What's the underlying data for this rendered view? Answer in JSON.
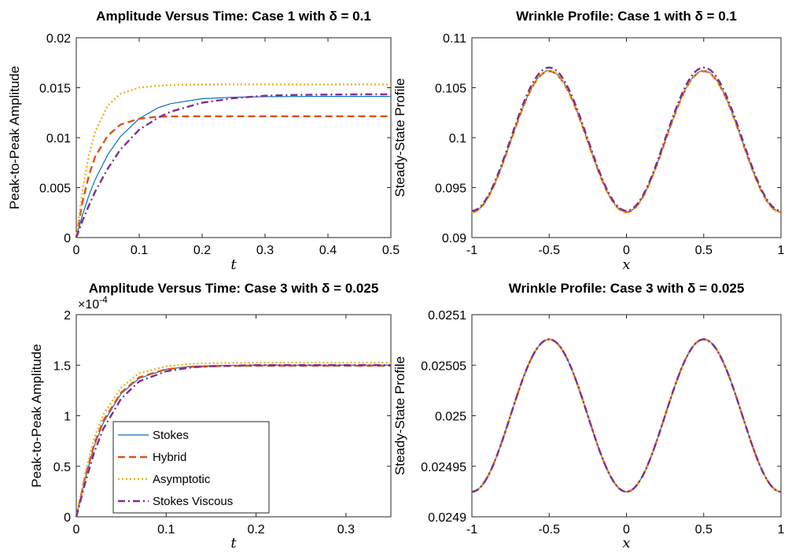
{
  "chart_data": [
    {
      "type": "line",
      "title": "Amplitude Versus Time: Case 1 with δ = 0.1",
      "xlabel": "t",
      "ylabel": "Peak-to-Peak Amplitude",
      "xlim": [
        0,
        0.5
      ],
      "ylim": [
        0,
        0.02
      ],
      "xticks": [
        "0",
        "0.1",
        "0.2",
        "0.3",
        "0.4",
        "0.5"
      ],
      "yticks": [
        "0",
        "0.005",
        "0.01",
        "0.015",
        "0.02"
      ],
      "exponent_label": "",
      "series": [
        {
          "name": "Stokes",
          "color": "#0072BD",
          "style": "solid",
          "x": [
            0,
            0.01,
            0.02,
            0.03,
            0.05,
            0.07,
            0.1,
            0.13,
            0.15,
            0.2,
            0.25,
            0.3,
            0.35,
            0.4,
            0.45,
            0.5
          ],
          "y": [
            0,
            0.0023,
            0.0042,
            0.0058,
            0.0083,
            0.0101,
            0.0119,
            0.013,
            0.0134,
            0.0139,
            0.01405,
            0.0141,
            0.01412,
            0.01413,
            0.01413,
            0.01413
          ]
        },
        {
          "name": "Hybrid",
          "color": "#D95319",
          "style": "dash",
          "x": [
            0,
            0.01,
            0.02,
            0.03,
            0.05,
            0.07,
            0.1,
            0.13,
            0.15,
            0.2,
            0.25,
            0.3,
            0.4,
            0.5
          ],
          "y": [
            0,
            0.0036,
            0.0062,
            0.0081,
            0.0102,
            0.0113,
            0.0119,
            0.0121,
            0.01213,
            0.01214,
            0.01214,
            0.01214,
            0.01214,
            0.01214
          ]
        },
        {
          "name": "Asymptotic",
          "color": "#EDB120",
          "style": "dot",
          "x": [
            0,
            0.01,
            0.02,
            0.03,
            0.05,
            0.07,
            0.1,
            0.13,
            0.15,
            0.2,
            0.25,
            0.3,
            0.4,
            0.5
          ],
          "y": [
            0,
            0.0048,
            0.0082,
            0.0106,
            0.0132,
            0.0144,
            0.015,
            0.0152,
            0.01527,
            0.01532,
            0.01533,
            0.01533,
            0.01533,
            0.01533
          ]
        },
        {
          "name": "Stokes Viscous",
          "color": "#7E2F8E",
          "style": "dashdot",
          "x": [
            0,
            0.01,
            0.02,
            0.03,
            0.05,
            0.07,
            0.1,
            0.13,
            0.15,
            0.2,
            0.25,
            0.3,
            0.35,
            0.4,
            0.45,
            0.5
          ],
          "y": [
            0,
            0.0017,
            0.0032,
            0.0046,
            0.0069,
            0.0088,
            0.0108,
            0.012,
            0.0126,
            0.0135,
            0.01395,
            0.0142,
            0.01428,
            0.01431,
            0.01433,
            0.01434
          ]
        }
      ]
    },
    {
      "type": "line",
      "title": "Wrinkle Profile: Case 1 with δ = 0.1",
      "xlabel": "x",
      "ylabel": "Steady-State Profile",
      "xlim": [
        -1,
        1
      ],
      "ylim": [
        0.09,
        0.11
      ],
      "xticks": [
        "-1",
        "-0.5",
        "0",
        "0.5",
        "1"
      ],
      "yticks": [
        "0.09",
        "0.095",
        "0.1",
        "0.105",
        "0.11"
      ],
      "exponent_label": "",
      "profile": {
        "formula": "mean - amp*cos(2*pi*x)",
        "x_range": [
          -1,
          1
        ]
      },
      "series": [
        {
          "name": "Stokes",
          "color": "#0072BD",
          "style": "solid",
          "mean": 0.09965,
          "amp": 0.00707
        },
        {
          "name": "Hybrid",
          "color": "#D95319",
          "style": "dash",
          "mean": 0.0996,
          "amp": 0.00705
        },
        {
          "name": "Asymptotic",
          "color": "#EDB120",
          "style": "dot",
          "mean": 0.0996,
          "amp": 0.0071
        },
        {
          "name": "Stokes Viscous",
          "color": "#7E2F8E",
          "style": "dashdot",
          "mean": 0.09985,
          "amp": 0.00717
        }
      ]
    },
    {
      "type": "line",
      "title": "Amplitude Versus Time: Case 3 with δ = 0.025",
      "xlabel": "t",
      "ylabel": "Peak-to-Peak Amplitude",
      "xlim": [
        0,
        0.35
      ],
      "ylim": [
        0,
        2
      ],
      "xticks": [
        "0",
        "0.1",
        "0.2",
        "0.3"
      ],
      "yticks": [
        "0",
        "0.5",
        "1",
        "1.5",
        "2"
      ],
      "exponent_label": "×10",
      "exponent_power": "-4",
      "legend_position": "bottom-left",
      "series": [
        {
          "name": "Stokes",
          "color": "#0072BD",
          "style": "solid",
          "x": [
            0,
            0.01,
            0.02,
            0.03,
            0.05,
            0.07,
            0.1,
            0.13,
            0.15,
            0.2,
            0.25,
            0.3,
            0.35
          ],
          "y": [
            0,
            0.38,
            0.7,
            0.93,
            1.22,
            1.37,
            1.46,
            1.49,
            1.495,
            1.5,
            1.5,
            1.5,
            1.5
          ]
        },
        {
          "name": "Hybrid",
          "color": "#D95319",
          "style": "dash",
          "x": [
            0,
            0.01,
            0.02,
            0.03,
            0.05,
            0.07,
            0.1,
            0.13,
            0.15,
            0.2,
            0.25,
            0.3,
            0.35
          ],
          "y": [
            0,
            0.4,
            0.72,
            0.95,
            1.23,
            1.38,
            1.46,
            1.485,
            1.49,
            1.495,
            1.495,
            1.495,
            1.495
          ]
        },
        {
          "name": "Asymptotic",
          "color": "#EDB120",
          "style": "dot",
          "x": [
            0,
            0.01,
            0.02,
            0.03,
            0.05,
            0.07,
            0.1,
            0.13,
            0.15,
            0.2,
            0.25,
            0.3,
            0.35
          ],
          "y": [
            0,
            0.44,
            0.78,
            1.01,
            1.28,
            1.42,
            1.49,
            1.515,
            1.52,
            1.525,
            1.525,
            1.525,
            1.525
          ]
        },
        {
          "name": "Stokes Viscous",
          "color": "#7E2F8E",
          "style": "dashdot",
          "x": [
            0,
            0.01,
            0.02,
            0.03,
            0.05,
            0.07,
            0.1,
            0.13,
            0.15,
            0.2,
            0.25,
            0.3,
            0.35
          ],
          "y": [
            0,
            0.34,
            0.64,
            0.87,
            1.17,
            1.34,
            1.44,
            1.48,
            1.49,
            1.5,
            1.5,
            1.5,
            1.5
          ]
        }
      ]
    },
    {
      "type": "line",
      "title": "Wrinkle Profile: Case 3 with δ = 0.025",
      "xlabel": "x",
      "ylabel": "Steady-State Profile",
      "xlim": [
        -1,
        1
      ],
      "ylim": [
        0.0249,
        0.0251
      ],
      "xticks": [
        "-1",
        "-0.5",
        "0",
        "0.5",
        "1"
      ],
      "yticks": [
        "0.0249",
        "0.02495",
        "0.025",
        "0.02505",
        "0.0251"
      ],
      "exponent_label": "",
      "profile": {
        "formula": "mean - amp*cos(2*pi*x)",
        "x_range": [
          -1,
          1
        ]
      },
      "series": [
        {
          "name": "Stokes",
          "color": "#0072BD",
          "style": "solid",
          "mean": 0.0250002,
          "amp": 7.54e-05
        },
        {
          "name": "Hybrid",
          "color": "#D95319",
          "style": "dash",
          "mean": 0.0250002,
          "amp": 7.54e-05
        },
        {
          "name": "Asymptotic",
          "color": "#EDB120",
          "style": "dot",
          "mean": 0.0250002,
          "amp": 7.54e-05
        },
        {
          "name": "Stokes Viscous",
          "color": "#7E2F8E",
          "style": "dashdot",
          "mean": 0.0250002,
          "amp": 7.54e-05
        }
      ]
    }
  ]
}
